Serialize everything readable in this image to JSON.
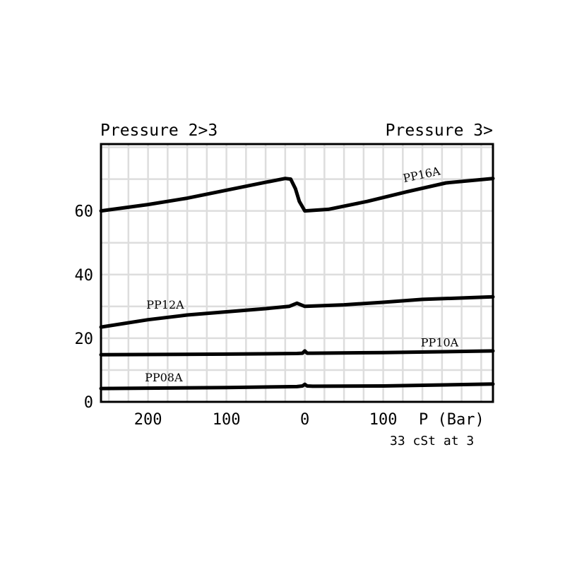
{
  "chart_data": {
    "type": "line",
    "header_left": "Pressure 2>3",
    "header_right": "Pressure 3>",
    "xlabel": "P (Bar)",
    "note": "33 cSt at 3",
    "xlim": [
      -260,
      240
    ],
    "ylim": [
      0,
      81
    ],
    "x_tick_labels": [
      {
        "x": -200,
        "label": "200"
      },
      {
        "x": -100,
        "label": "100"
      },
      {
        "x": 0,
        "label": "0"
      },
      {
        "x": 100,
        "label": "100"
      }
    ],
    "y_tick_labels": [
      {
        "y": 0,
        "label": "0"
      },
      {
        "y": 20,
        "label": "20"
      },
      {
        "y": 40,
        "label": "40"
      },
      {
        "y": 60,
        "label": "60"
      }
    ],
    "grid": true,
    "colors": {
      "line": "#000000",
      "grid": "#dddddd"
    },
    "series": [
      {
        "name": "PP16A",
        "points": [
          [
            -260,
            60
          ],
          [
            -200,
            62
          ],
          [
            -150,
            64
          ],
          [
            -100,
            66.5
          ],
          [
            -50,
            69
          ],
          [
            -25,
            70.2
          ],
          [
            -18,
            70
          ],
          [
            -12,
            67
          ],
          [
            -7,
            63
          ],
          [
            0,
            60
          ],
          [
            30,
            60.5
          ],
          [
            80,
            63
          ],
          [
            130,
            66
          ],
          [
            180,
            68.8
          ],
          [
            240,
            70.2
          ]
        ]
      },
      {
        "name": "PP12A",
        "points": [
          [
            -260,
            23.5
          ],
          [
            -200,
            25.8
          ],
          [
            -150,
            27.3
          ],
          [
            -100,
            28.3
          ],
          [
            -50,
            29.3
          ],
          [
            -20,
            30
          ],
          [
            -10,
            31
          ],
          [
            0,
            30
          ],
          [
            50,
            30.5
          ],
          [
            100,
            31.3
          ],
          [
            150,
            32.2
          ],
          [
            240,
            33
          ]
        ]
      },
      {
        "name": "PP10A",
        "points": [
          [
            -260,
            14.8
          ],
          [
            -100,
            15
          ],
          [
            -10,
            15.2
          ],
          [
            -3,
            15.3
          ],
          [
            0,
            16
          ],
          [
            3,
            15.3
          ],
          [
            10,
            15.3
          ],
          [
            100,
            15.5
          ],
          [
            240,
            16
          ]
        ]
      },
      {
        "name": "PP08A",
        "points": [
          [
            -260,
            4.2
          ],
          [
            -100,
            4.5
          ],
          [
            -10,
            4.8
          ],
          [
            -3,
            5
          ],
          [
            0,
            5.5
          ],
          [
            3,
            5
          ],
          [
            10,
            4.9
          ],
          [
            100,
            5
          ],
          [
            240,
            5.6
          ]
        ]
      }
    ],
    "series_labels": [
      {
        "name": "PP16A",
        "x": 150,
        "y": 70.2,
        "rotate": -12
      },
      {
        "name": "PP12A",
        "x": -178,
        "y": 29.3,
        "rotate": 0
      },
      {
        "name": "PP10A",
        "x": 172,
        "y": 17.4,
        "rotate": 0
      },
      {
        "name": "PP08A",
        "x": -180,
        "y": 6.4,
        "rotate": 0
      }
    ]
  }
}
